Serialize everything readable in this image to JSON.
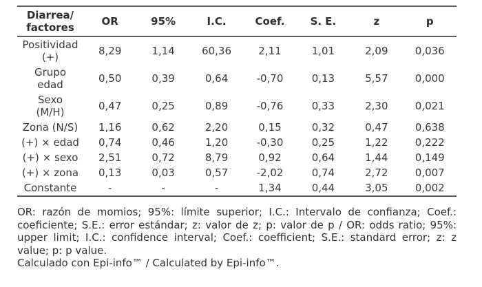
{
  "page": {
    "background": "#ffffff",
    "text_color": "#3a3a3a",
    "rule_color": "#5e5e5e"
  },
  "table": {
    "headers": [
      "Diarrea/\nfactores",
      "OR",
      "95%",
      "I.C.",
      "Coef.",
      "S. E.",
      "z",
      "p"
    ],
    "rows": [
      {
        "label": "Positividad\n(+)",
        "values": [
          "8,29",
          "1,14",
          "60,36",
          "2,11",
          "1,01",
          "2,09",
          "0,036"
        ]
      },
      {
        "label": "Grupo\nedad",
        "values": [
          "0,50",
          "0,39",
          "0,64",
          "-0,70",
          "0,13",
          "5,57",
          "0,000"
        ]
      },
      {
        "label": "Sexo\n(M/H)",
        "values": [
          "0,47",
          "0,25",
          "0,89",
          "-0,76",
          "0,33",
          "2,30",
          "0,021"
        ]
      },
      {
        "label": "Zona (N/S)",
        "values": [
          "1,16",
          "0,62",
          "2,20",
          "0,15",
          "0,32",
          "0,47",
          "0,638"
        ]
      },
      {
        "label": "(+) × edad",
        "values": [
          "0,74",
          "0,46",
          "1,20",
          "-0,30",
          "0,25",
          "1,22",
          "0,222"
        ]
      },
      {
        "label": "(+) × sexo",
        "values": [
          "2,51",
          "0,72",
          "8,79",
          "0,92",
          "0,64",
          "1,44",
          "0,149"
        ]
      },
      {
        "label": "(+) × zona",
        "values": [
          "0,13",
          "0,03",
          "0,57",
          "-2,02",
          "0,74",
          "2,72",
          "0,007"
        ]
      },
      {
        "label": "Constante",
        "values": [
          "-",
          "-",
          "-",
          "1,34",
          "0,44",
          "3,05",
          "0,002"
        ]
      }
    ]
  },
  "footnotes": {
    "abbreviations": "OR: razón de momios; 95%: límite superior; I.C.: Intervalo de confianza; Coef.: coeficiente; S.E.: error estándar; z: valor de z; p: valor de p / OR: odds ratio; 95%: upper limit; I.C.: confidence interval; Coef.: coefficient; S.E.: standard error; z: z value; p: p value.",
    "software": "Calculado con Epi-info™ / Calculated by Epi-info™."
  }
}
